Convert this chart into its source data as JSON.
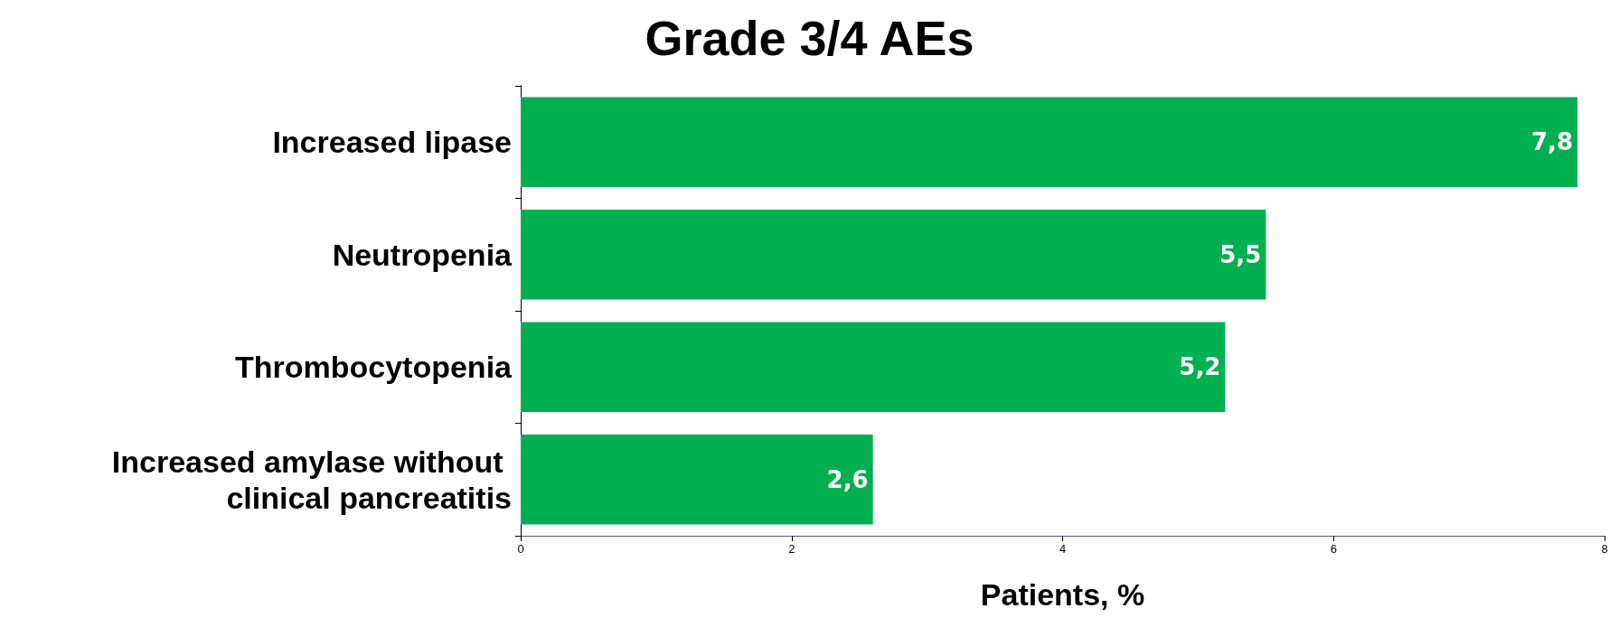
{
  "chart_data": {
    "type": "bar",
    "orientation": "horizontal",
    "title": "Grade 3/4 AEs",
    "xlabel": "Patients, %",
    "categories": [
      "Increased lipase",
      "Neutropenia",
      "Thrombocytopenia",
      "Increased amylase without clinical pancreatitis"
    ],
    "values": [
      7.8,
      5.5,
      5.2,
      2.6
    ],
    "color": "#00b050",
    "value_labels": [
      "7,8",
      "5,5",
      "5,2",
      "2,6"
    ],
    "xlim": [
      0,
      8
    ],
    "xticks": [
      0,
      2,
      4,
      6,
      8
    ],
    "grid": false
  }
}
